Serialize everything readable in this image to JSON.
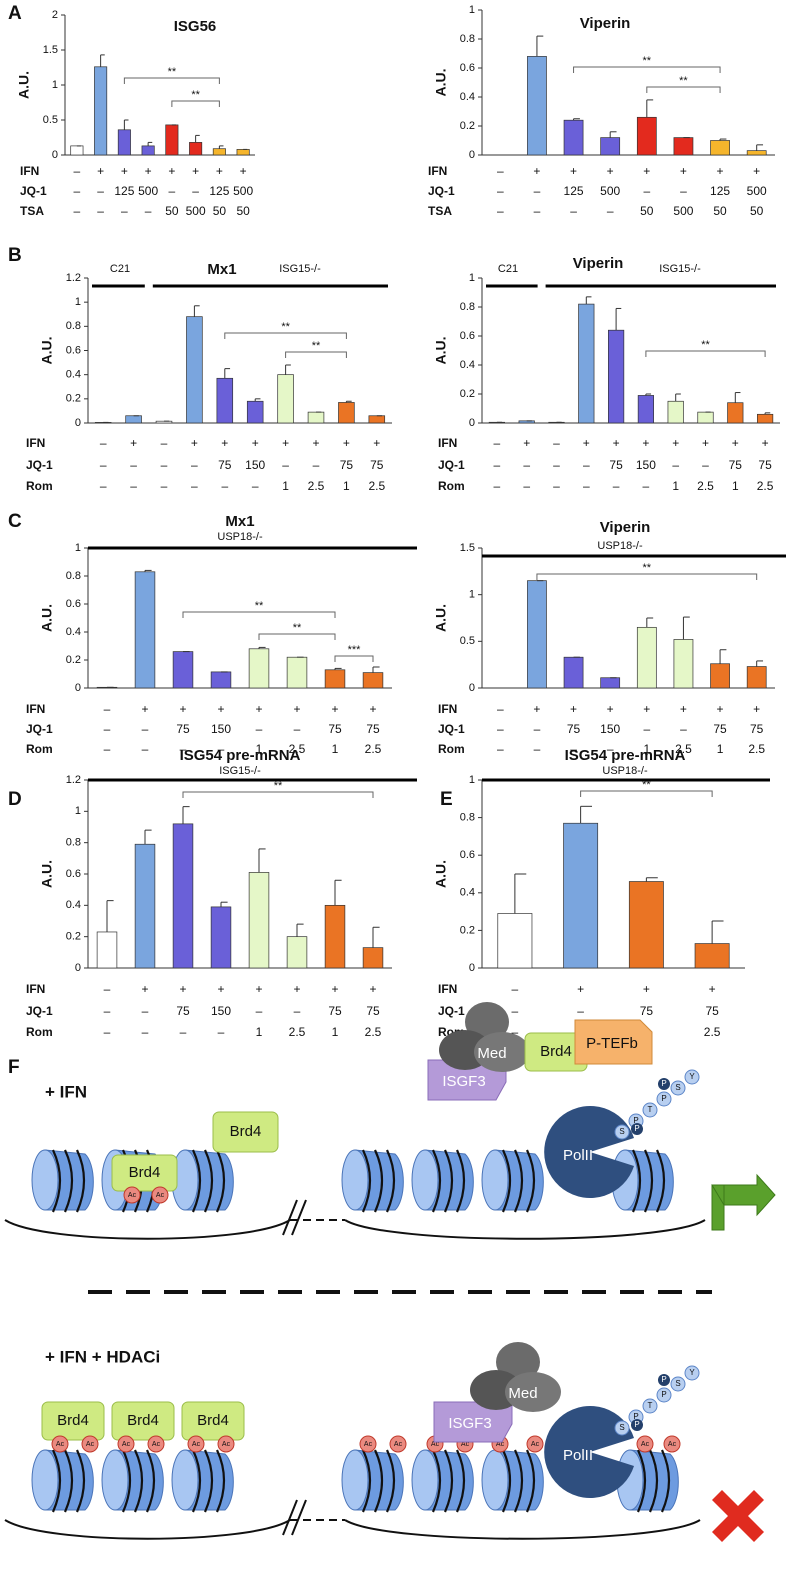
{
  "chart_data": [
    {
      "type": "bar",
      "panel": "A",
      "title": "ISG56",
      "ylabel": "A.U.",
      "ylim": [
        0,
        2
      ],
      "yticks": [
        0,
        0.5,
        1,
        1.5,
        2
      ],
      "values": [
        0.13,
        1.26,
        0.36,
        0.13,
        0.43,
        0.18,
        0.09,
        0.08
      ],
      "errors": [
        0,
        0.17,
        0.14,
        0.05,
        0,
        0.1,
        0.04,
        0
      ],
      "colors": [
        "#ffffff",
        "#7aa5de",
        "#6a60d8",
        "#6a60d8",
        "#e32a1e",
        "#e32a1e",
        "#f5b52c",
        "#f5b52c"
      ],
      "treatments": [
        {
          "label": "IFN",
          "cells": [
            "–",
            "+",
            "+",
            "+",
            "+",
            "+",
            "+",
            "+"
          ]
        },
        {
          "label": "JQ-1",
          "cells": [
            "–",
            "–",
            "125",
            "500",
            "–",
            "–",
            "125",
            "500"
          ]
        },
        {
          "label": "TSA",
          "cells": [
            "–",
            "–",
            "–",
            "–",
            "50",
            "500",
            "50",
            "50"
          ]
        }
      ],
      "significance": [
        "**",
        "**"
      ]
    },
    {
      "type": "bar",
      "title": "Viperin",
      "ylabel": "A.U.",
      "ylim": [
        0,
        1
      ],
      "yticks": [
        0,
        0.2,
        0.4,
        0.6,
        0.8,
        1
      ],
      "values": [
        0,
        0.68,
        0.24,
        0.12,
        0.26,
        0.12,
        0.1,
        0.03
      ],
      "errors": [
        0,
        0.14,
        0.01,
        0.04,
        0.12,
        0,
        0.01,
        0.04
      ],
      "colors": [
        "#ffffff",
        "#7aa5de",
        "#6a60d8",
        "#6a60d8",
        "#e32a1e",
        "#e32a1e",
        "#f5b52c",
        "#f5b52c"
      ],
      "treatments": [
        {
          "label": "IFN",
          "cells": [
            "–",
            "+",
            "+",
            "+",
            "+",
            "+",
            "+",
            "+"
          ]
        },
        {
          "label": "JQ-1",
          "cells": [
            "–",
            "–",
            "125",
            "500",
            "–",
            "–",
            "125",
            "500"
          ]
        },
        {
          "label": "TSA",
          "cells": [
            "–",
            "–",
            "–",
            "–",
            "50",
            "500",
            "50",
            "50"
          ]
        }
      ],
      "significance": [
        "**",
        "**"
      ]
    },
    {
      "type": "bar",
      "panel": "B",
      "title": "Mx1",
      "groups": [
        "C21",
        "ISG15-/-"
      ],
      "ylabel": "A.U.",
      "ylim": [
        0,
        1.2
      ],
      "yticks": [
        0,
        0.2,
        0.4,
        0.6,
        0.8,
        1,
        1.2
      ],
      "values": [
        0.005,
        0.06,
        0.015,
        0.88,
        0.37,
        0.18,
        0.4,
        0.09,
        0.17,
        0.06
      ],
      "errors": [
        0,
        0,
        0,
        0.09,
        0.08,
        0.02,
        0.08,
        0,
        0.01,
        0
      ],
      "colors": [
        "#ffffff",
        "#7aa5de",
        "#ffffff",
        "#7aa5de",
        "#6a60d8",
        "#6a60d8",
        "#e5f7c8",
        "#e5f7c8",
        "#ea7424",
        "#ea7424"
      ],
      "treatments": [
        {
          "label": "IFN",
          "cells": [
            "–",
            "+",
            "–",
            "+",
            "+",
            "+",
            "+",
            "+",
            "+",
            "+"
          ]
        },
        {
          "label": "JQ-1",
          "cells": [
            "–",
            "–",
            "–",
            "–",
            "75",
            "150",
            "–",
            "–",
            "75",
            "75"
          ]
        },
        {
          "label": "Rom",
          "cells": [
            "–",
            "–",
            "–",
            "–",
            "–",
            "–",
            "1",
            "2.5",
            "1",
            "2.5"
          ]
        }
      ],
      "significance": [
        "**",
        "**"
      ]
    },
    {
      "type": "bar",
      "title": "Viperin",
      "groups": [
        "C21",
        "ISG15-/-"
      ],
      "ylabel": "A.U.",
      "ylim": [
        0,
        1
      ],
      "yticks": [
        0,
        0.2,
        0.4,
        0.6,
        0.8,
        1
      ],
      "values": [
        0.005,
        0.015,
        0.005,
        0.82,
        0.64,
        0.19,
        0.15,
        0.075,
        0.14,
        0.06
      ],
      "errors": [
        0,
        0,
        0,
        0.05,
        0.15,
        0.01,
        0.05,
        0,
        0.07,
        0.01
      ],
      "colors": [
        "#ffffff",
        "#7aa5de",
        "#ffffff",
        "#7aa5de",
        "#6a60d8",
        "#6a60d8",
        "#e5f7c8",
        "#e5f7c8",
        "#ea7424",
        "#ea7424"
      ],
      "treatments": [
        {
          "label": "IFN",
          "cells": [
            "–",
            "+",
            "–",
            "+",
            "+",
            "+",
            "+",
            "+",
            "+",
            "+"
          ]
        },
        {
          "label": "JQ-1",
          "cells": [
            "–",
            "–",
            "–",
            "–",
            "75",
            "150",
            "–",
            "–",
            "75",
            "75"
          ]
        },
        {
          "label": "Rom",
          "cells": [
            "–",
            "–",
            "–",
            "–",
            "–",
            "–",
            "1",
            "2.5",
            "1",
            "2.5"
          ]
        }
      ],
      "significance": [
        "**"
      ]
    },
    {
      "type": "bar",
      "panel": "C",
      "title": "Mx1",
      "groups": [
        "USP18-/-"
      ],
      "ylabel": "A.U.",
      "ylim": [
        0,
        1
      ],
      "yticks": [
        0,
        0.2,
        0.4,
        0.6,
        0.8,
        1
      ],
      "values": [
        0.005,
        0.83,
        0.26,
        0.115,
        0.28,
        0.22,
        0.13,
        0.11
      ],
      "errors": [
        0,
        0.01,
        0,
        0,
        0.01,
        0,
        0.01,
        0.04
      ],
      "colors": [
        "#ffffff",
        "#7aa5de",
        "#6a60d8",
        "#6a60d8",
        "#e5f7c8",
        "#e5f7c8",
        "#ea7424",
        "#ea7424"
      ],
      "treatments": [
        {
          "label": "IFN",
          "cells": [
            "–",
            "+",
            "+",
            "+",
            "+",
            "+",
            "+",
            "+"
          ]
        },
        {
          "label": "JQ-1",
          "cells": [
            "–",
            "–",
            "75",
            "150",
            "–",
            "–",
            "75",
            "75"
          ]
        },
        {
          "label": "Rom",
          "cells": [
            "–",
            "–",
            "–",
            "–",
            "1",
            "2.5",
            "1",
            "2.5"
          ]
        }
      ],
      "significance": [
        "**",
        "**",
        "***"
      ]
    },
    {
      "type": "bar",
      "title": "Viperin",
      "groups": [
        "USP18-/-"
      ],
      "ylabel": "A.U.",
      "ylim": [
        0,
        1.5
      ],
      "yticks": [
        0,
        0.5,
        1,
        1.5
      ],
      "values": [
        0,
        1.15,
        0.33,
        0.11,
        0.65,
        0.52,
        0.26,
        0.23
      ],
      "errors": [
        0,
        0,
        0,
        0,
        0.1,
        0.24,
        0.15,
        0.06
      ],
      "colors": [
        "#ffffff",
        "#7aa5de",
        "#6a60d8",
        "#6a60d8",
        "#e5f7c8",
        "#e5f7c8",
        "#ea7424",
        "#ea7424"
      ],
      "treatments": [
        {
          "label": "IFN",
          "cells": [
            "–",
            "+",
            "+",
            "+",
            "+",
            "+",
            "+",
            "+"
          ]
        },
        {
          "label": "JQ-1",
          "cells": [
            "–",
            "–",
            "75",
            "150",
            "–",
            "–",
            "75",
            "75"
          ]
        },
        {
          "label": "Rom",
          "cells": [
            "–",
            "–",
            "–",
            "–",
            "1",
            "2.5",
            "1",
            "2.5"
          ]
        }
      ],
      "significance": [
        "**"
      ]
    },
    {
      "type": "bar",
      "panel": "D",
      "title": "ISG54 pre-mRNA",
      "groups": [
        "ISG15-/-"
      ],
      "ylabel": "A.U.",
      "ylim": [
        0,
        1.2
      ],
      "yticks": [
        0,
        0.2,
        0.4,
        0.6,
        0.8,
        1,
        1.2
      ],
      "values": [
        0.23,
        0.79,
        0.92,
        0.39,
        0.61,
        0.2,
        0.4,
        0.13
      ],
      "errors": [
        0.2,
        0.09,
        0.11,
        0.03,
        0.15,
        0.08,
        0.16,
        0.13
      ],
      "colors": [
        "#ffffff",
        "#7aa5de",
        "#6a60d8",
        "#6a60d8",
        "#e5f7c8",
        "#e5f7c8",
        "#ea7424",
        "#ea7424"
      ],
      "treatments": [
        {
          "label": "IFN",
          "cells": [
            "–",
            "+",
            "+",
            "+",
            "+",
            "+",
            "+",
            "+"
          ]
        },
        {
          "label": "JQ-1",
          "cells": [
            "–",
            "–",
            "75",
            "150",
            "–",
            "–",
            "75",
            "75"
          ]
        },
        {
          "label": "Rom",
          "cells": [
            "–",
            "–",
            "–",
            "–",
            "1",
            "2.5",
            "1",
            "2.5"
          ]
        }
      ],
      "significance": [
        "**"
      ]
    },
    {
      "type": "bar",
      "panel": "E",
      "title": "ISG54 pre-mRNA",
      "groups": [
        "USP18-/-"
      ],
      "ylabel": "A.U.",
      "ylim": [
        0,
        1
      ],
      "yticks": [
        0,
        0.2,
        0.4,
        0.6,
        0.8,
        1
      ],
      "values": [
        0.29,
        0.77,
        0.46,
        0.13
      ],
      "errors": [
        0.21,
        0.09,
        0.02,
        0.12
      ],
      "colors": [
        "#ffffff",
        "#7aa5de",
        "#ea7424",
        "#ea7424"
      ],
      "treatments": [
        {
          "label": "IFN",
          "cells": [
            "–",
            "+",
            "+",
            "+"
          ]
        },
        {
          "label": "JQ-1",
          "cells": [
            "–",
            "–",
            "75",
            "75"
          ]
        },
        {
          "label": "Rom",
          "cells": [
            "–",
            "–",
            "1",
            "2.5"
          ]
        }
      ],
      "significance": [
        "**"
      ]
    }
  ],
  "diagram": {
    "panel": "F",
    "conditions": [
      "+ IFN",
      "+ IFN + HDACi"
    ],
    "brd4": "Brd4",
    "med": "Med",
    "ptefb": "P-TEFb",
    "isgf3": "ISGF3",
    "polii": "PolII",
    "ac": "Ac",
    "ctd": [
      "S",
      "P",
      "T",
      "P",
      "S",
      "Y"
    ],
    "phospho": "P"
  }
}
